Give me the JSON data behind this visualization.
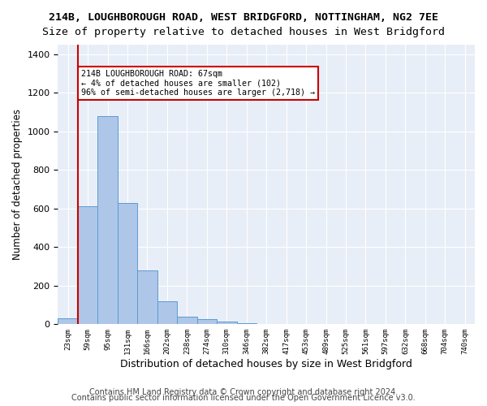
{
  "title1": "214B, LOUGHBOROUGH ROAD, WEST BRIDGFORD, NOTTINGHAM, NG2 7EE",
  "title2": "Size of property relative to detached houses in West Bridgford",
  "xlabel": "Distribution of detached houses by size in West Bridgford",
  "ylabel": "Number of detached properties",
  "bin_labels": [
    "23sqm",
    "59sqm",
    "95sqm",
    "131sqm",
    "166sqm",
    "202sqm",
    "238sqm",
    "274sqm",
    "310sqm",
    "346sqm",
    "382sqm",
    "417sqm",
    "453sqm",
    "489sqm",
    "525sqm",
    "561sqm",
    "597sqm",
    "632sqm",
    "668sqm",
    "704sqm",
    "740sqm"
  ],
  "bar_values": [
    30,
    610,
    1080,
    630,
    280,
    120,
    40,
    25,
    15,
    5,
    2,
    1,
    0,
    0,
    0,
    0,
    0,
    0,
    0,
    0,
    0
  ],
  "bar_color": "#aec6e8",
  "bar_edge_color": "#5b9bd5",
  "vline_x": 1.0,
  "vline_color": "#cc0000",
  "annotation_text": "214B LOUGHBOROUGH ROAD: 67sqm\n← 4% of detached houses are smaller (102)\n96% of semi-detached houses are larger (2,718) →",
  "annotation_box_color": "#ffffff",
  "annotation_box_edge": "#cc0000",
  "ylim": [
    0,
    1450
  ],
  "yticks": [
    0,
    200,
    400,
    600,
    800,
    1000,
    1200,
    1400
  ],
  "footer1": "Contains HM Land Registry data © Crown copyright and database right 2024.",
  "footer2": "Contains public sector information licensed under the Open Government Licence v3.0.",
  "plot_bg_color": "#e8eef7",
  "title1_fontsize": 9.5,
  "title2_fontsize": 9.5,
  "xlabel_fontsize": 9,
  "ylabel_fontsize": 8.5,
  "footer_fontsize": 7
}
